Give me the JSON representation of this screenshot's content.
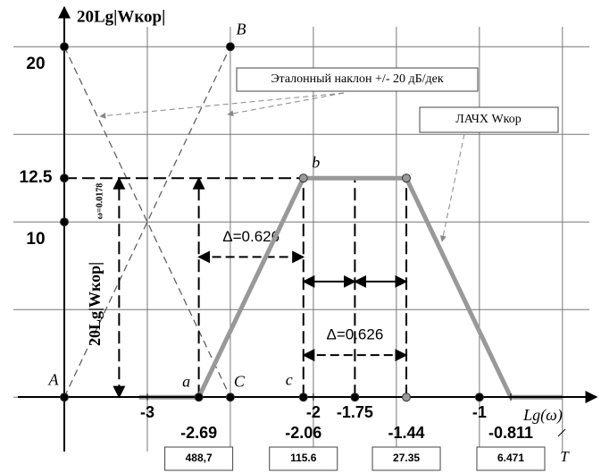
{
  "chart_data": {
    "type": "line",
    "title": "20Lg|Wкор|",
    "x_label": "Lg(ω)",
    "period_label": "T",
    "eval_label": "20Lg|Wкор|",
    "eval_at": "ω=0.0178",
    "xlim": [
      -3.5,
      -0.3
    ],
    "ylim": [
      -3,
      22
    ],
    "xticks": [
      -3,
      -2.69,
      -2.06,
      -2,
      -1.75,
      -1.44,
      -1,
      -0.811
    ],
    "yticks": [
      20,
      12.5,
      10
    ],
    "xgrid": [
      -3.5,
      -3,
      -2.5,
      -2,
      -1.5,
      -1,
      -0.5
    ],
    "ygrid": [
      0,
      5,
      10,
      15,
      20
    ],
    "series": [
      {
        "name": "ЛАЧХ Wкор",
        "color": "#999999",
        "x": [
          -3.05,
          -2.69,
          -2.06,
          -1.44,
          -0.811,
          -0.5
        ],
        "values": [
          0,
          0,
          12.5,
          12.5,
          0,
          0
        ]
      }
    ],
    "reference_name": "Эталонный наклон +/- 20 дБ/дек",
    "reference_lines": [
      {
        "x": [
          -3.5,
          -2.5
        ],
        "y": [
          0,
          20
        ]
      },
      {
        "x": [
          -3.5,
          -2.5
        ],
        "y": [
          20,
          0
        ]
      }
    ],
    "guides": [
      {
        "x": [
          -3.5,
          -2.06
        ],
        "y": [
          12.5,
          12.5
        ]
      },
      {
        "x": [
          -2.06,
          -2.06
        ],
        "y": [
          0,
          12.5
        ]
      },
      {
        "x": [
          -1.75,
          -1.75
        ],
        "y": [
          0,
          12.5
        ]
      },
      {
        "x": [
          -1.44,
          -1.44
        ],
        "y": [
          0,
          12.5
        ]
      },
      {
        "x": [
          -2.69,
          -2.69
        ],
        "y": [
          0,
          12.5
        ]
      },
      {
        "x": [
          -3.17,
          -3.17
        ],
        "y": [
          0,
          12.5
        ]
      }
    ],
    "deltas": [
      {
        "label": "Δ=0.626",
        "x": [
          -2.69,
          -2.06
        ],
        "y": 8
      },
      {
        "label": "Δ=0.626",
        "x": [
          -2.06,
          -1.44
        ],
        "y": 2.4
      }
    ],
    "halves": [
      {
        "x": [
          -2.06,
          -1.75
        ],
        "y": 6.6
      },
      {
        "x": [
          -1.75,
          -1.44
        ],
        "y": 6.6
      }
    ],
    "points": [
      {
        "label": "A",
        "x": -3.5,
        "y": 0
      },
      {
        "label": "B",
        "x": -2.5,
        "y": 20
      },
      {
        "label": "C",
        "x": -2.5,
        "y": 0
      },
      {
        "label": "a",
        "x": -2.69,
        "y": 0
      },
      {
        "label": "b",
        "x": -2.06,
        "y": 12.5
      },
      {
        "label": "c",
        "x": -2.06,
        "y": 0
      }
    ],
    "markers": [
      {
        "x": -3.5,
        "y": 20
      },
      {
        "x": -3.5,
        "y": 12.5
      },
      {
        "x": -3.5,
        "y": 10
      },
      {
        "x": -1.75,
        "y": 0
      },
      {
        "x": -1.44,
        "y": 0
      },
      {
        "x": -1.44,
        "y": 12.5
      },
      {
        "x": -1,
        "y": 0
      }
    ],
    "periods": [
      "488,7",
      "115.6",
      "27.35",
      "6.471"
    ]
  }
}
